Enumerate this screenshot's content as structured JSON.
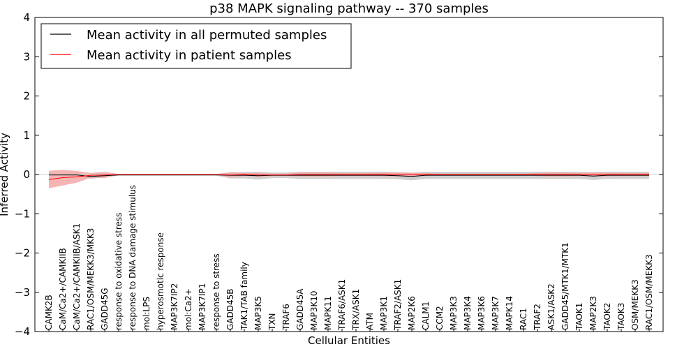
{
  "chart_data": {
    "type": "line",
    "title": "p38 MAPK signaling pathway -- 370 samples",
    "xlabel": "Cellular Entities",
    "ylabel": "Inferred Activity",
    "ylim": [
      -4,
      4
    ],
    "yticks": [
      4,
      3,
      2,
      1,
      0,
      -1,
      -2,
      -3,
      -4
    ],
    "ytick_labels": [
      "4",
      "3",
      "2",
      "1",
      "0",
      "−1",
      "−2",
      "−3",
      "−4"
    ],
    "legend_position": "top-left",
    "categories": [
      "CAMK2B",
      "CaM/Ca2+/CAMKIIB",
      "CaM/Ca2+/CAMKIIB/ASK1",
      "RAC1/OSM/MEKK3/MKK3",
      "GADD45G",
      "response to oxidative stress",
      "response to DNA damage stimulus",
      "mol:LPS",
      "hyperosmotic response",
      "MAP3K7IP2",
      "mol:Ca2+",
      "MAP3K7IP1",
      "response to stress",
      "GADD45B",
      "TAK1/TAB family",
      "MAP3K5",
      "TXN",
      "TRAF6",
      "GADD45A",
      "MAP3K10",
      "MAPK11",
      "TRAF6/ASK1",
      "TRX/ASK1",
      "ATM",
      "MAP3K1",
      "TRAF2/ASK1",
      "MAP2K6",
      "CALM1",
      "CCM2",
      "MAP3K3",
      "MAP3K4",
      "MAP3K6",
      "MAP3K7",
      "MAPK14",
      "RAC1",
      "TRAF2",
      "ASK1/ASK2",
      "GADD45/MTK1/MTK1",
      "TAOK1",
      "MAP2K3",
      "TAOK2",
      "TAOK3",
      "OSM/MEKK3",
      "RAC1/OSM/MEKK3"
    ],
    "series": [
      {
        "name": "Mean activity in all permuted samples",
        "color": "#000000",
        "band_color": "#bfbfbf",
        "values": [
          -0.01,
          -0.01,
          -0.01,
          -0.05,
          -0.03,
          -0.01,
          -0.01,
          -0.01,
          -0.01,
          -0.01,
          -0.01,
          -0.01,
          -0.01,
          -0.02,
          -0.02,
          -0.03,
          -0.02,
          -0.02,
          -0.02,
          -0.02,
          -0.02,
          -0.02,
          -0.02,
          -0.02,
          -0.02,
          -0.03,
          -0.05,
          -0.02,
          -0.02,
          -0.02,
          -0.02,
          -0.02,
          -0.02,
          -0.02,
          -0.02,
          -0.02,
          -0.02,
          -0.02,
          -0.02,
          -0.04,
          -0.02,
          -0.02,
          -0.02,
          -0.02
        ],
        "band_half_width": [
          0.02,
          0.02,
          0.03,
          0.06,
          0.04,
          0.02,
          0.02,
          0.02,
          0.02,
          0.02,
          0.02,
          0.02,
          0.02,
          0.08,
          0.08,
          0.1,
          0.07,
          0.07,
          0.09,
          0.09,
          0.09,
          0.09,
          0.09,
          0.09,
          0.09,
          0.09,
          0.1,
          0.09,
          0.09,
          0.09,
          0.09,
          0.09,
          0.09,
          0.09,
          0.09,
          0.09,
          0.09,
          0.09,
          0.09,
          0.1,
          0.09,
          0.09,
          0.09,
          0.09
        ]
      },
      {
        "name": "Mean activity in patient samples",
        "color": "#ff0000",
        "band_color": "#f4a3a3",
        "values": [
          -0.13,
          -0.08,
          -0.06,
          -0.02,
          -0.01,
          0.0,
          0.0,
          0.0,
          0.0,
          0.0,
          0.0,
          0.0,
          0.0,
          -0.01,
          0.0,
          -0.01,
          -0.01,
          -0.01,
          0.0,
          0.0,
          0.0,
          0.0,
          0.0,
          0.0,
          0.0,
          0.0,
          0.0,
          0.0,
          0.0,
          0.0,
          0.0,
          0.0,
          0.0,
          0.0,
          0.0,
          0.0,
          0.0,
          0.0,
          0.0,
          0.0,
          0.0,
          0.0,
          0.0,
          0.0
        ],
        "band_half_width": [
          0.22,
          0.2,
          0.15,
          0.06,
          0.08,
          0.01,
          0.01,
          0.01,
          0.01,
          0.01,
          0.01,
          0.01,
          0.01,
          0.06,
          0.04,
          0.05,
          0.03,
          0.03,
          0.05,
          0.05,
          0.05,
          0.04,
          0.04,
          0.04,
          0.05,
          0.05,
          0.04,
          0.04,
          0.02,
          0.02,
          0.02,
          0.02,
          0.02,
          0.02,
          0.02,
          0.04,
          0.05,
          0.05,
          0.04,
          0.05,
          0.05,
          0.04,
          0.04,
          0.04
        ]
      }
    ]
  }
}
